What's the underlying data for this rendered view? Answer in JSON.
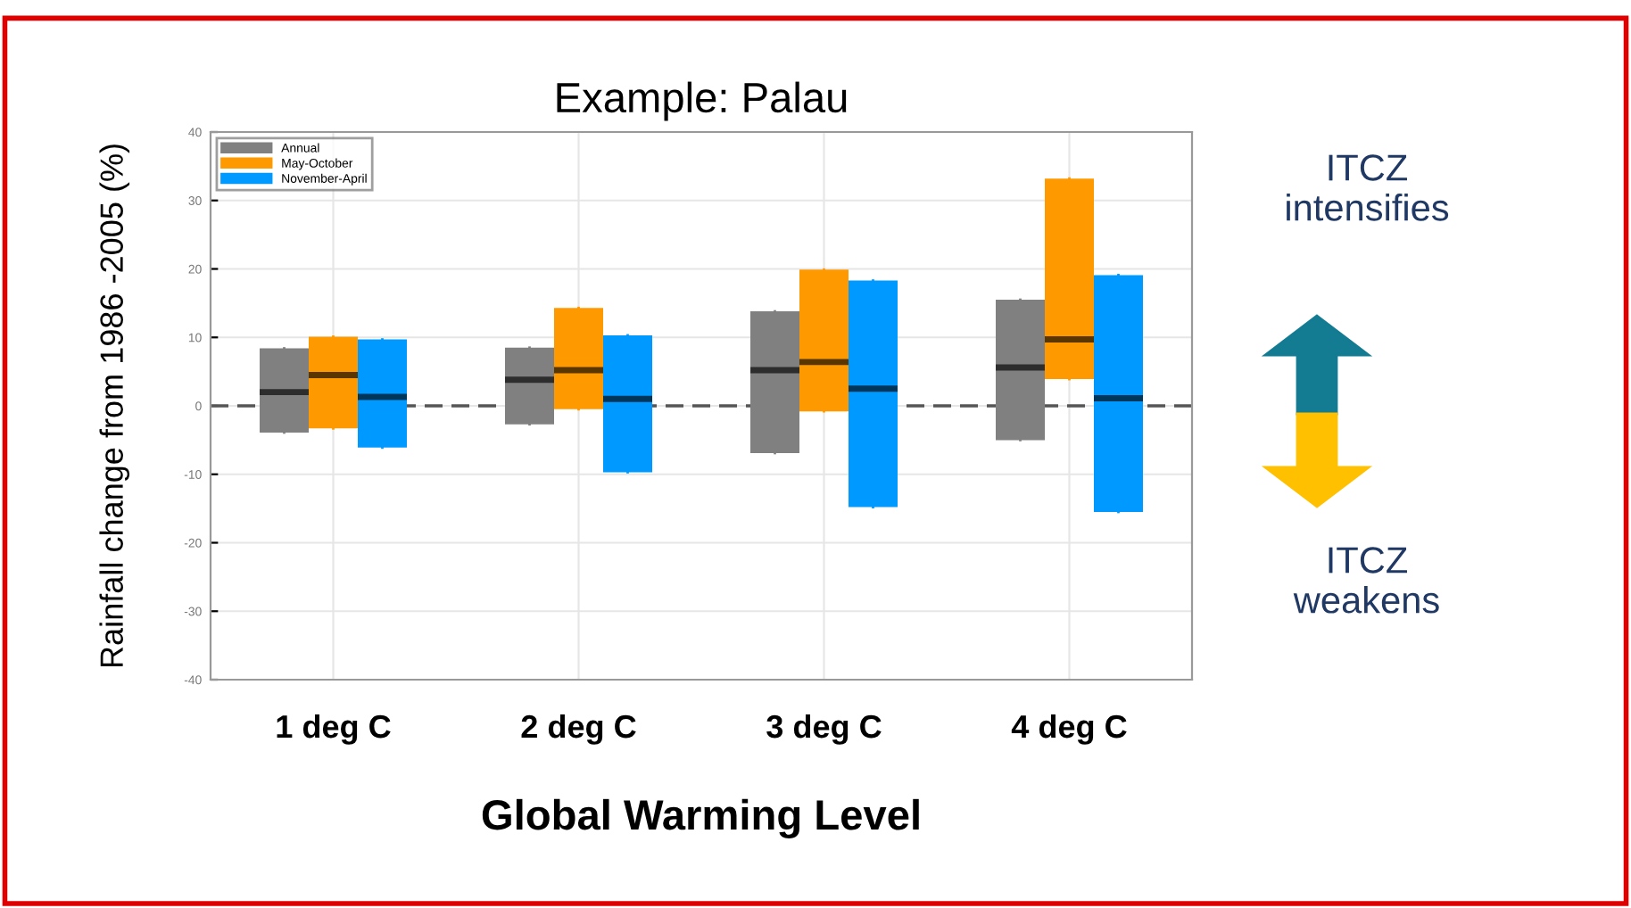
{
  "chart_data": {
    "type": "box",
    "title": "Example: Palau",
    "xlabel": "Global Warming Level",
    "ylabel": "Rainfall change from 1986 -2005 (%)",
    "categories": [
      "1 deg C",
      "2 deg C",
      "3 deg C",
      "4 deg C"
    ],
    "series": [
      {
        "name": "Annual",
        "color": "#808080",
        "boxes": [
          {
            "low": -3.9,
            "q1": -3.9,
            "median": 2.0,
            "q3": 8.4,
            "high": 8.4
          },
          {
            "low": -2.7,
            "q1": -2.7,
            "median": 3.8,
            "q3": 8.5,
            "high": 8.5
          },
          {
            "low": -6.9,
            "q1": -6.9,
            "median": 5.2,
            "q3": 13.8,
            "high": 13.8
          },
          {
            "low": -5.0,
            "q1": -5.0,
            "median": 5.6,
            "q3": 15.5,
            "high": 15.5
          }
        ]
      },
      {
        "name": "May-October",
        "color": "#ff9900",
        "boxes": [
          {
            "low": -3.3,
            "q1": -3.3,
            "median": 4.5,
            "q3": 10.1,
            "high": 10.1
          },
          {
            "low": -0.5,
            "q1": -0.5,
            "median": 5.2,
            "q3": 14.3,
            "high": 14.3
          },
          {
            "low": -0.8,
            "q1": -0.8,
            "median": 6.4,
            "q3": 19.9,
            "high": 19.9
          },
          {
            "low": 3.9,
            "q1": 3.9,
            "median": 9.7,
            "q3": 33.2,
            "high": 33.2
          }
        ]
      },
      {
        "name": "November-April",
        "color": "#0099ff",
        "boxes": [
          {
            "low": -6.1,
            "q1": -6.1,
            "median": 1.3,
            "q3": 9.7,
            "high": 9.7
          },
          {
            "low": -9.7,
            "q1": -9.7,
            "median": 1.0,
            "q3": 10.3,
            "high": 10.3
          },
          {
            "low": -14.8,
            "q1": -14.8,
            "median": 2.5,
            "q3": 18.3,
            "high": 18.3
          },
          {
            "low": -15.5,
            "q1": -15.5,
            "median": 1.1,
            "q3": 19.1,
            "high": 19.1
          }
        ]
      }
    ],
    "ylim": [
      -40,
      40
    ],
    "yticks": [
      -40,
      -30,
      -20,
      -10,
      0,
      10,
      20,
      30,
      40
    ],
    "ref_lines": [
      {
        "axis": "y",
        "value": 0,
        "color": "#555555",
        "line_style": "dashed"
      }
    ],
    "grid": true,
    "legend": "top left",
    "annotations": [
      "ITCZ intensifies",
      "ITCZ weakens"
    ]
  }
}
